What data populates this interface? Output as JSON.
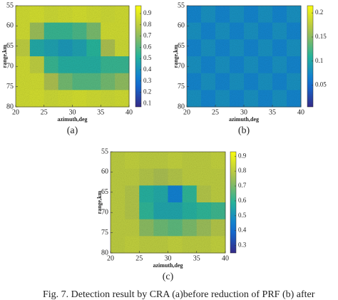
{
  "chart_data": [
    {
      "type": "heatmap",
      "panel_label": "(a)",
      "xlabel": "azimuth,deg",
      "ylabel": "range,km",
      "xlim": [
        20,
        40
      ],
      "ylim": [
        80,
        55
      ],
      "xticks": [
        20,
        25,
        30,
        35,
        40
      ],
      "yticks": [
        55,
        60,
        65,
        70,
        75,
        80
      ],
      "y_reversed": true,
      "clim": [
        0.07,
        0.97
      ],
      "cticks": [
        0.1,
        0.2,
        0.3,
        0.4,
        0.5,
        0.6,
        0.7,
        0.8,
        0.9
      ],
      "colormap": "parula",
      "z": [
        [
          0.85,
          0.86,
          0.84,
          0.85,
          0.86,
          0.85,
          0.84,
          0.85
        ],
        [
          0.85,
          0.72,
          0.55,
          0.55,
          0.58,
          0.66,
          0.85,
          0.85
        ],
        [
          0.8,
          0.48,
          0.45,
          0.42,
          0.45,
          0.52,
          0.75,
          0.84
        ],
        [
          0.85,
          0.8,
          0.55,
          0.5,
          0.5,
          0.5,
          0.55,
          0.55
        ],
        [
          0.85,
          0.85,
          0.75,
          0.65,
          0.6,
          0.6,
          0.65,
          0.7
        ],
        [
          0.85,
          0.86,
          0.84,
          0.85,
          0.86,
          0.85,
          0.84,
          0.85
        ]
      ]
    },
    {
      "type": "heatmap",
      "panel_label": "(b)",
      "xlabel": "azimuth,deg",
      "ylabel": "range,km",
      "xlim": [
        20,
        40
      ],
      "ylim": [
        80,
        55
      ],
      "xticks": [
        20,
        25,
        30,
        35,
        40
      ],
      "yticks": [
        55,
        60,
        65,
        70,
        75,
        80
      ],
      "y_reversed": true,
      "clim": [
        0.005,
        0.215
      ],
      "cticks": [
        0.05,
        0.1,
        0.15,
        0.2
      ],
      "colormap": "parula",
      "z": [
        [
          0.07,
          0.08,
          0.07,
          0.08,
          0.07,
          0.08,
          0.07,
          0.08
        ],
        [
          0.08,
          0.07,
          0.08,
          0.07,
          0.08,
          0.07,
          0.08,
          0.07
        ],
        [
          0.07,
          0.08,
          0.07,
          0.08,
          0.07,
          0.08,
          0.07,
          0.08
        ],
        [
          0.08,
          0.07,
          0.08,
          0.07,
          0.08,
          0.07,
          0.08,
          0.07
        ],
        [
          0.07,
          0.08,
          0.07,
          0.08,
          0.07,
          0.08,
          0.07,
          0.08
        ],
        [
          0.08,
          0.07,
          0.08,
          0.07,
          0.08,
          0.07,
          0.08,
          0.07
        ]
      ]
    },
    {
      "type": "heatmap",
      "panel_label": "(c)",
      "xlabel": "azimuth,deg",
      "ylabel": "range,km",
      "xlim": [
        20,
        40
      ],
      "ylim": [
        80,
        55
      ],
      "xticks": [
        20,
        25,
        30,
        35,
        40
      ],
      "yticks": [
        55,
        60,
        65,
        70,
        75,
        80
      ],
      "y_reversed": true,
      "clim": [
        0.25,
        0.93
      ],
      "cticks": [
        0.3,
        0.4,
        0.5,
        0.6,
        0.7,
        0.8,
        0.9
      ],
      "colormap": "parula",
      "z": [
        [
          0.8,
          0.81,
          0.8,
          0.8,
          0.81,
          0.8,
          0.8,
          0.81
        ],
        [
          0.8,
          0.8,
          0.78,
          0.76,
          0.78,
          0.8,
          0.8,
          0.8
        ],
        [
          0.8,
          0.78,
          0.58,
          0.56,
          0.45,
          0.6,
          0.78,
          0.8
        ],
        [
          0.8,
          0.78,
          0.6,
          0.55,
          0.55,
          0.58,
          0.6,
          0.62
        ],
        [
          0.8,
          0.8,
          0.72,
          0.68,
          0.66,
          0.7,
          0.74,
          0.78
        ],
        [
          0.8,
          0.81,
          0.8,
          0.8,
          0.81,
          0.8,
          0.8,
          0.81
        ]
      ]
    }
  ],
  "caption": "Fig. 7. Detection result by CRA (a)before reduction of PRF (b) after"
}
